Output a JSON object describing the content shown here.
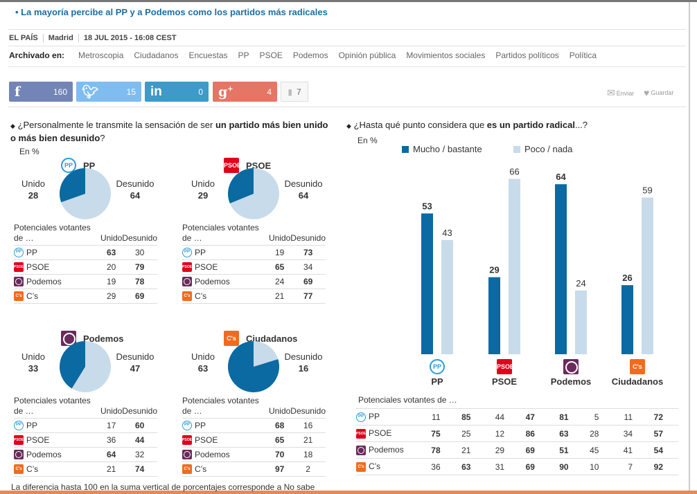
{
  "headline": "La mayoría percibe al PP y a Podemos como los partidos más radicales",
  "meta": {
    "source": "EL PAÍS",
    "place": "Madrid",
    "date": "18 JUL 2015 - 16:08 CEST"
  },
  "tags": {
    "label": "Archivado en:",
    "items": [
      "Metroscopia",
      "Ciudadanos",
      "Encuestas",
      "PP",
      "PSOE",
      "Podemos",
      "Opinión pública",
      "Movimientos sociales",
      "Partidos políticos",
      "Política"
    ]
  },
  "share": {
    "facebook": "160",
    "twitter": "15",
    "linkedin": "0",
    "googleplus": "4",
    "comments": "7",
    "send": "Enviar",
    "save": "Guardar"
  },
  "colors": {
    "dark": "#0a6aa1",
    "light": "#c8dbea",
    "facebook": "#7384b6",
    "twitter": "#7fbdf0",
    "linkedin": "#3d9ac9",
    "googleplus": "#e57565"
  },
  "left": {
    "question_pre": "¿Personalmente le transmite la sensación de ser ",
    "question_bold": "un partido más bien unido o más bien desunido",
    "question_post": "?",
    "unit": "En %",
    "unido_label": "Unido",
    "desunido_label": "Desunido",
    "table_header": [
      "Potenciales votantes de …",
      "Unido",
      "Desunido"
    ],
    "row_parties": [
      "PP",
      "PSOE",
      "Podemos",
      "C’s"
    ],
    "pies": [
      {
        "party": "PP",
        "unido": 28,
        "desunido": 64,
        "rows": [
          [
            63,
            30
          ],
          [
            20,
            79
          ],
          [
            19,
            78
          ],
          [
            29,
            69
          ]
        ]
      },
      {
        "party": "PSOE",
        "unido": 29,
        "desunido": 64,
        "rows": [
          [
            19,
            73
          ],
          [
            65,
            34
          ],
          [
            24,
            69
          ],
          [
            21,
            77
          ]
        ]
      },
      {
        "party": "Podemos",
        "unido": 33,
        "desunido": 47,
        "rows": [
          [
            17,
            60
          ],
          [
            36,
            44
          ],
          [
            64,
            32
          ],
          [
            21,
            74
          ]
        ]
      },
      {
        "party": "Ciudadanos",
        "unido": 63,
        "desunido": 16,
        "rows": [
          [
            68,
            16
          ],
          [
            65,
            21
          ],
          [
            70,
            18
          ],
          [
            97,
            2
          ]
        ]
      }
    ]
  },
  "chart_data": {
    "type": "bar",
    "title": "¿Hasta qué punto considera que es un partido radical...?",
    "title_pre": "¿Hasta qué punto considera que ",
    "title_bold": "es un partido radical",
    "title_post": "...?",
    "unit": "En %",
    "categories": [
      "PP",
      "PSOE",
      "Podemos",
      "Ciudadanos"
    ],
    "series": [
      {
        "name": "Mucho / bastante",
        "values": [
          53,
          29,
          64,
          26
        ]
      },
      {
        "name": "Poco / nada",
        "values": [
          43,
          66,
          24,
          59
        ]
      }
    ],
    "ylim": [
      0,
      100
    ],
    "grid": false,
    "legend": "top",
    "table_header": "Potenciales votantes de …",
    "row_parties": [
      "PP",
      "PSOE",
      "Podemos",
      "C’s"
    ],
    "rows": [
      [
        [
          11,
          85
        ],
        [
          44,
          47
        ],
        [
          81,
          5
        ],
        [
          11,
          72
        ]
      ],
      [
        [
          75,
          25
        ],
        [
          12,
          86
        ],
        [
          63,
          28
        ],
        [
          34,
          57
        ]
      ],
      [
        [
          78,
          21
        ],
        [
          29,
          69
        ],
        [
          51,
          45
        ],
        [
          41,
          54
        ]
      ],
      [
        [
          36,
          63
        ],
        [
          31,
          69
        ],
        [
          90,
          10
        ],
        [
          7,
          92
        ]
      ]
    ]
  },
  "footnote": "La diferencia hasta 100 en la suma vertical de porcentajes corresponde a No sabe",
  "logos": {
    "PP": "PP",
    "PSOE": "PSOE",
    "Podemos": "",
    "Ciudadanos": "C's"
  }
}
